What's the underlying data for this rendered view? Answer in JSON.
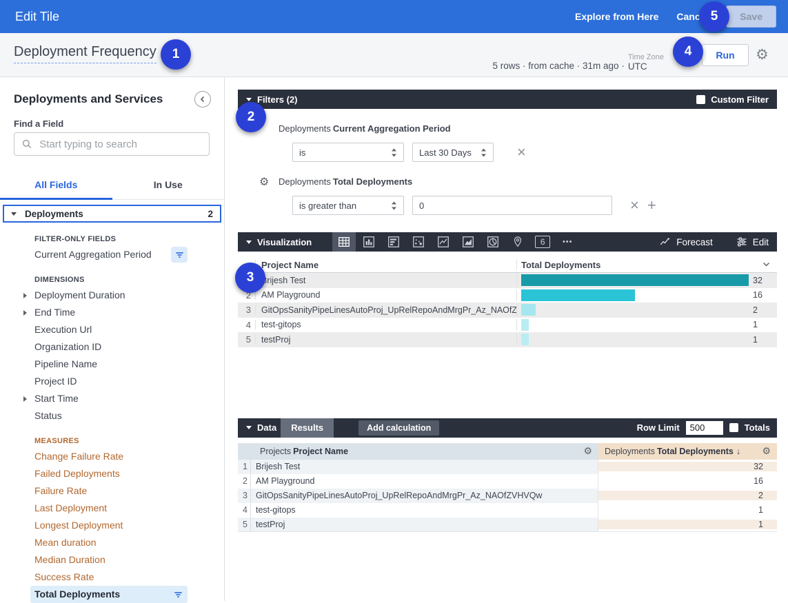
{
  "topbar": {
    "title": "Edit Tile",
    "explore_label": "Explore from Here",
    "cancel_label": "Cancel",
    "save_label": "Save"
  },
  "header": {
    "title": "Deployment Frequency",
    "status": "5 rows · from cache · 31m ago ·",
    "timezone_label": "Time Zone",
    "timezone_value": "UTC",
    "run_label": "Run"
  },
  "callouts": {
    "c1": "1",
    "c2": "2",
    "c3": "3",
    "c4": "4",
    "c5": "5"
  },
  "icons": {
    "close": "×",
    "add": "+",
    "gear": "⚙",
    "sort_desc": "↓",
    "more": "•••",
    "single_value": "6"
  },
  "sidebar": {
    "title": "Deployments and Services",
    "find_label": "Find a Field",
    "search_placeholder": "Start typing to search",
    "tabs": {
      "all": "All Fields",
      "in_use": "In Use"
    },
    "group": {
      "label": "Deployments",
      "count": "2"
    },
    "sections": [
      {
        "heading": "FILTER-ONLY FIELDS",
        "items": [
          {
            "label": "Current Aggregation Period"
          }
        ]
      },
      {
        "heading": "DIMENSIONS",
        "items": [
          {
            "label": "Deployment Duration"
          },
          {
            "label": "End Time"
          },
          {
            "label": "Execution Url"
          },
          {
            "label": "Organization ID"
          },
          {
            "label": "Pipeline Name"
          },
          {
            "label": "Project ID"
          },
          {
            "label": "Start Time"
          },
          {
            "label": "Status"
          }
        ]
      },
      {
        "heading": "MEASURES",
        "items": [
          {
            "label": "Change Failure Rate"
          },
          {
            "label": "Failed Deployments"
          },
          {
            "label": "Failure Rate"
          },
          {
            "label": "Last Deployment"
          },
          {
            "label": "Longest Deployment"
          },
          {
            "label": "Mean duration"
          },
          {
            "label": "Median Duration"
          },
          {
            "label": "Success Rate"
          },
          {
            "label": "Total Deployments"
          }
        ]
      }
    ]
  },
  "filters": {
    "title": "Filters (2)",
    "custom_filter_label": "Custom Filter",
    "rows": [
      {
        "group": "Deployments",
        "field": "Current Aggregation Period",
        "operator": "is",
        "value": "Last 30 Days"
      },
      {
        "group": "Deployments",
        "field": "Total Deployments",
        "operator": "is greater than",
        "value": "0"
      }
    ]
  },
  "visualization": {
    "title": "Visualization",
    "forecast_label": "Forecast",
    "edit_label": "Edit",
    "columns": {
      "dimension": "Project Name",
      "measure": "Total Deployments"
    },
    "rows": [
      {
        "num": "1",
        "name": "Brijesh Test",
        "value": "32",
        "bar_pct": 100,
        "bar_color": "#189aa8"
      },
      {
        "num": "2",
        "name": "AM Playground",
        "value": "16",
        "bar_pct": 50,
        "bar_color": "#2ac4d6"
      },
      {
        "num": "3",
        "name": "GitOpsSanityPipeLinesAutoProj_UpRelRepoAndMrgPr_Az_NAOfZ...",
        "value": "2",
        "bar_pct": 6.3,
        "bar_color": "#a5e7f0"
      },
      {
        "num": "4",
        "name": "test-gitops",
        "value": "1",
        "bar_pct": 3.2,
        "bar_color": "#b9edf4"
      },
      {
        "num": "5",
        "name": "testProj",
        "value": "1",
        "bar_pct": 3.2,
        "bar_color": "#b9edf4"
      }
    ]
  },
  "data_section": {
    "title": "Data",
    "results_label": "Results",
    "add_calc_label": "Add calculation",
    "row_limit_label": "Row Limit",
    "row_limit_value": "500",
    "totals_label": "Totals",
    "columns": {
      "dimension_group": "Projects",
      "dimension": "Project Name",
      "measure_group": "Deployments",
      "measure": "Total Deployments"
    },
    "rows": [
      {
        "num": "1",
        "name": "Brijesh Test",
        "value": "32"
      },
      {
        "num": "2",
        "name": "AM Playground",
        "value": "16"
      },
      {
        "num": "3",
        "name": "GitOpsSanityPipeLinesAutoProj_UpRelRepoAndMrgPr_Az_NAOfZVHVQw",
        "value": "2"
      },
      {
        "num": "4",
        "name": "test-gitops",
        "value": "1"
      },
      {
        "num": "5",
        "name": "testProj",
        "value": "1"
      }
    ]
  }
}
